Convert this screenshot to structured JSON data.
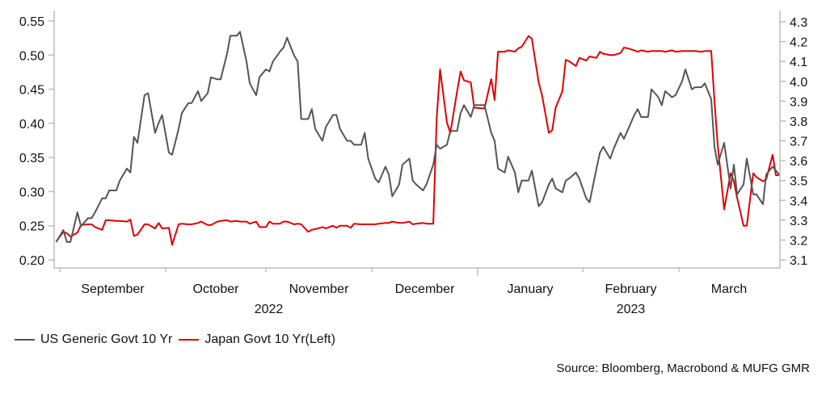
{
  "chart_data": {
    "type": "line",
    "title": "",
    "source": "Source: Bloomberg, Macrobond & MUFG GMR",
    "start_date": "2022-09-01",
    "x_unit": "days since start_date",
    "xlim": [
      -1,
      212
    ],
    "x_months": [
      {
        "label": "September",
        "start": "2022-09-01"
      },
      {
        "label": "October",
        "start": "2022-10-01"
      },
      {
        "label": "November",
        "start": "2022-11-01"
      },
      {
        "label": "December",
        "start": "2022-12-01"
      },
      {
        "label": "January",
        "start": "2023-01-01"
      },
      {
        "label": "February",
        "start": "2023-02-01"
      },
      {
        "label": "March",
        "start": "2023-03-01"
      }
    ],
    "x_years": [
      {
        "label": "2022",
        "under": "October-November"
      },
      {
        "label": "2023",
        "under": "February"
      }
    ],
    "x_end": "2023-04-01",
    "y_left": {
      "ylim": [
        0.2,
        0.55
      ],
      "ticks": [
        "0.20",
        "0.25",
        "0.30",
        "0.35",
        "0.40",
        "0.45",
        "0.50",
        "0.55"
      ]
    },
    "y_right": {
      "ylim": [
        3.1,
        4.3
      ],
      "ticks": [
        "3.1",
        "3.2",
        "3.3",
        "3.4",
        "3.5",
        "3.6",
        "3.7",
        "3.8",
        "3.9",
        "4.0",
        "4.1",
        "4.2",
        "4.3"
      ]
    },
    "grid": false,
    "legend_position": "bottom-left",
    "x": [
      -1,
      1,
      2,
      3,
      5,
      6,
      8,
      9,
      10,
      12,
      13,
      14,
      16,
      17,
      19,
      20,
      21,
      22,
      24,
      25,
      27,
      28,
      29,
      31,
      32,
      34,
      35,
      37,
      38,
      40,
      41,
      43,
      44,
      46,
      47,
      49,
      50,
      52,
      53,
      55,
      56,
      58,
      59,
      61,
      62,
      63,
      65,
      66,
      67,
      69,
      70,
      71,
      73,
      74,
      75,
      77,
      78,
      80,
      81,
      82,
      84,
      85,
      86,
      88,
      89,
      90,
      92,
      93,
      95,
      96,
      97,
      99,
      100,
      102,
      103,
      104,
      106,
      107,
      109,
      110,
      111,
      113,
      114,
      116,
      117,
      118,
      120,
      121,
      123,
      124,
      126,
      127,
      128,
      130,
      131,
      133,
      134,
      135,
      137,
      138,
      140,
      141,
      143,
      144,
      145,
      147,
      148,
      149,
      151,
      152,
      154,
      155,
      157,
      158,
      159,
      161,
      162,
      164,
      165,
      166,
      168,
      169,
      170,
      172,
      173,
      175,
      176,
      177,
      179,
      180,
      182,
      183,
      185,
      186,
      188,
      189,
      191,
      192,
      193,
      195,
      197,
      198,
      199,
      201,
      202,
      204,
      205,
      207,
      208,
      210,
      211,
      212
    ],
    "series": [
      {
        "name": "US Generic Govt 10 Yr",
        "axis": "right",
        "color": "#555555",
        "values": [
          3.19,
          3.25,
          3.19,
          3.19,
          3.34,
          3.27,
          3.31,
          3.31,
          3.34,
          3.41,
          3.41,
          3.45,
          3.45,
          3.5,
          3.56,
          3.54,
          3.72,
          3.69,
          3.93,
          3.94,
          3.74,
          3.79,
          3.83,
          3.64,
          3.63,
          3.76,
          3.84,
          3.89,
          3.89,
          3.95,
          3.9,
          3.94,
          4.02,
          4.01,
          4.01,
          4.14,
          4.23,
          4.23,
          4.25,
          4.1,
          3.99,
          3.93,
          4.02,
          4.06,
          4.05,
          4.1,
          4.15,
          4.17,
          4.22,
          4.13,
          4.1,
          3.81,
          3.81,
          3.86,
          3.76,
          3.7,
          3.77,
          3.83,
          3.83,
          3.76,
          3.7,
          3.7,
          3.68,
          3.68,
          3.74,
          3.61,
          3.51,
          3.49,
          3.57,
          3.53,
          3.42,
          3.48,
          3.58,
          3.61,
          3.5,
          3.48,
          3.45,
          3.48,
          3.58,
          3.68,
          3.66,
          3.68,
          3.75,
          3.75,
          3.84,
          3.88,
          3.82,
          3.88,
          3.88,
          3.88,
          3.74,
          3.7,
          3.56,
          3.54,
          3.62,
          3.54,
          3.44,
          3.5,
          3.5,
          3.55,
          3.37,
          3.39,
          3.48,
          3.51,
          3.46,
          3.44,
          3.5,
          3.51,
          3.54,
          3.51,
          3.41,
          3.39,
          3.56,
          3.64,
          3.67,
          3.61,
          3.66,
          3.74,
          3.71,
          3.75,
          3.83,
          3.86,
          3.82,
          3.82,
          3.96,
          3.92,
          3.88,
          3.95,
          3.92,
          3.93,
          4.0,
          4.06,
          3.96,
          3.97,
          3.97,
          3.99,
          3.91,
          3.67,
          3.58,
          3.69,
          3.46,
          3.58,
          3.43,
          3.48,
          3.61,
          3.43,
          3.43,
          3.38,
          3.53,
          3.57,
          3.55,
          3.53
        ]
      },
      {
        "name": "Japan Govt 10 Yr(Left)",
        "axis": "left",
        "color": "#e00000",
        "values": [
          0.227,
          0.241,
          0.239,
          0.234,
          0.24,
          0.251,
          0.252,
          0.252,
          0.248,
          0.244,
          0.258,
          0.258,
          0.257,
          0.257,
          0.256,
          0.259,
          0.235,
          0.237,
          0.252,
          0.252,
          0.246,
          0.254,
          0.246,
          0.247,
          0.222,
          0.252,
          0.253,
          0.252,
          0.252,
          0.254,
          0.256,
          0.251,
          0.251,
          0.256,
          0.257,
          0.258,
          0.256,
          0.257,
          0.256,
          0.256,
          0.253,
          0.256,
          0.248,
          0.248,
          0.256,
          0.253,
          0.253,
          0.256,
          0.256,
          0.252,
          0.253,
          0.252,
          0.241,
          0.244,
          0.245,
          0.248,
          0.246,
          0.25,
          0.247,
          0.25,
          0.25,
          0.247,
          0.253,
          0.252,
          0.252,
          0.252,
          0.252,
          0.253,
          0.254,
          0.254,
          0.256,
          0.254,
          0.254,
          0.256,
          0.252,
          0.253,
          0.254,
          0.253,
          0.253,
          0.407,
          0.479,
          0.401,
          0.386,
          0.447,
          0.476,
          0.463,
          0.46,
          0.423,
          0.422,
          0.422,
          0.465,
          0.434,
          0.505,
          0.505,
          0.507,
          0.505,
          0.51,
          0.512,
          0.528,
          0.524,
          0.46,
          0.441,
          0.386,
          0.39,
          0.423,
          0.447,
          0.493,
          0.491,
          0.484,
          0.496,
          0.492,
          0.498,
          0.496,
          0.505,
          0.502,
          0.5,
          0.5,
          0.503,
          0.511,
          0.51,
          0.507,
          0.505,
          0.507,
          0.505,
          0.506,
          0.506,
          0.506,
          0.505,
          0.507,
          0.505,
          0.506,
          0.506,
          0.506,
          0.506,
          0.505,
          0.506,
          0.506,
          0.433,
          0.368,
          0.274,
          0.327,
          0.315,
          0.291,
          0.25,
          0.25,
          0.327,
          0.321,
          0.315,
          0.318,
          0.354,
          0.324,
          0.324
        ]
      }
    ]
  }
}
